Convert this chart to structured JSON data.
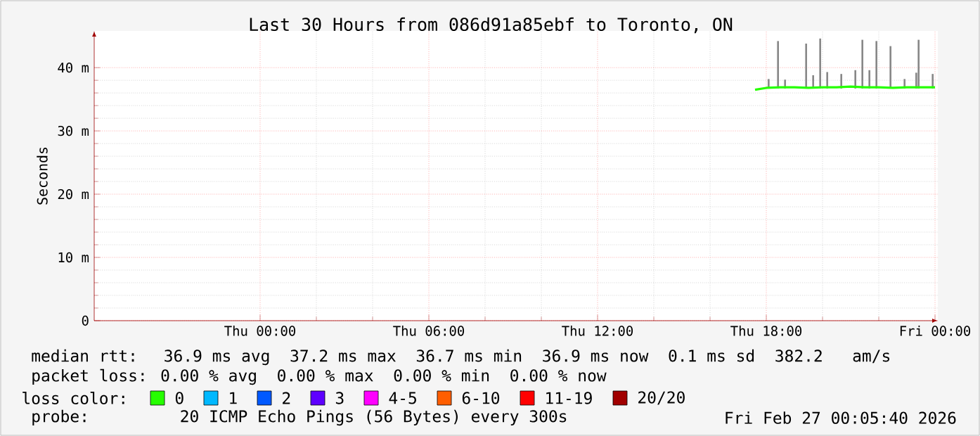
{
  "chart_data": {
    "type": "line",
    "title": "Last 30 Hours from 086d91a85ebf to Toronto, ON",
    "ylabel": "Seconds",
    "xlim": [
      "2026-02-25T18:06",
      "2026-02-27T00:06"
    ],
    "ylim": [
      0,
      45.8
    ],
    "xticks": [
      {
        "value": "2026-02-26T00:00",
        "label": "Thu 00:00"
      },
      {
        "value": "2026-02-26T06:00",
        "label": "Thu 06:00"
      },
      {
        "value": "2026-02-26T12:00",
        "label": "Thu 12:00"
      },
      {
        "value": "2026-02-26T18:00",
        "label": "Thu 18:00"
      },
      {
        "value": "2026-02-27T00:00",
        "label": "Fri 00:00"
      }
    ],
    "yticks": [
      0,
      {
        "value": 10,
        "label": "10 m"
      },
      {
        "value": 20,
        "label": "20 m"
      },
      {
        "value": 30,
        "label": "30 m"
      },
      {
        "value": 40,
        "label": "40 m"
      }
    ],
    "grid": true,
    "legend": "bottom",
    "legend_title": "loss color:",
    "series": [
      {
        "type": "bar",
        "color": "#888888",
        "x": [
          "2026-02-26T18:05",
          "2026-02-26T18:25",
          "2026-02-26T18:40",
          "2026-02-26T19:25",
          "2026-02-26T19:40",
          "2026-02-26T19:55",
          "2026-02-26T20:10",
          "2026-02-26T20:40",
          "2026-02-26T21:10",
          "2026-02-26T21:25",
          "2026-02-26T21:40",
          "2026-02-26T21:55",
          "2026-02-26T22:25",
          "2026-02-26T22:55",
          "2026-02-26T23:20",
          "2026-02-26T23:25",
          "2026-02-26T23:55"
        ],
        "base": [
          36.7,
          36.7,
          36.7,
          36.7,
          36.7,
          36.7,
          36.7,
          36.7,
          36.7,
          36.7,
          36.7,
          36.7,
          36.7,
          36.7,
          36.7,
          36.7,
          36.7
        ],
        "values": [
          1.5,
          7.5,
          1.4,
          7.1,
          2.1,
          7.9,
          2.6,
          2.3,
          2.9,
          7.7,
          2.9,
          7.5,
          6.7,
          1.5,
          2.5,
          7.7,
          2.3
        ]
      },
      {
        "name": "0",
        "color": "#26ff00",
        "x": [
          "2026-02-26T17:36",
          "2026-02-26T18:00",
          "2026-02-26T18:30",
          "2026-02-26T19:00",
          "2026-02-26T19:30",
          "2026-02-26T20:00",
          "2026-02-26T20:30",
          "2026-02-26T21:00",
          "2026-02-26T21:30",
          "2026-02-26T22:00",
          "2026-02-26T22:30",
          "2026-02-26T23:00",
          "2026-02-26T23:30",
          "2026-02-27T00:00"
        ],
        "values": [
          36.5,
          36.8,
          36.9,
          36.9,
          36.8,
          36.9,
          36.9,
          37.0,
          36.9,
          36.9,
          36.8,
          36.9,
          36.9,
          36.9
        ]
      },
      {
        "name": "1",
        "color": "#00b8ff"
      },
      {
        "name": "2",
        "color": "#0059ff"
      },
      {
        "name": "3",
        "color": "#5e00ff"
      },
      {
        "name": "4-5",
        "color": "#ff00ff"
      },
      {
        "name": "6-10",
        "color": "#ff5e00"
      },
      {
        "name": "11-19",
        "color": "#ff0000"
      },
      {
        "name": "20/20",
        "color": "#a10000"
      }
    ],
    "annotations": [
      "median rtt:  36.9 ms avg  37.2 ms max  36.7 ms min  36.9 ms now  0.1 ms sd  382.2   am/s",
      "packet loss: 0.00 % avg  0.00 % max  0.00 % min  0.00 % now",
      "probe:       20 ICMP Echo Pings (56 Bytes) every 300s",
      "Fri Feb 27 00:05:40 2026"
    ]
  }
}
